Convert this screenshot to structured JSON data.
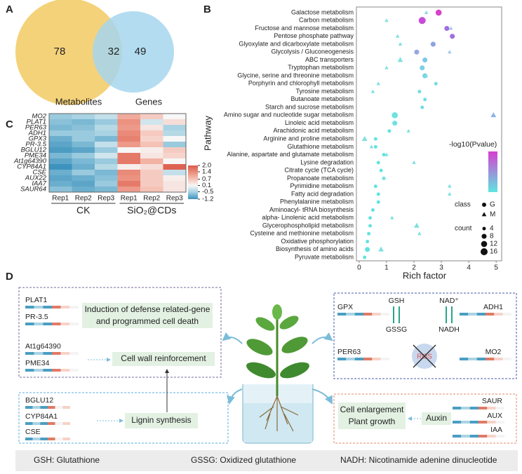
{
  "chart_data": [
    {
      "type": "venn",
      "panel": "A",
      "sets": [
        {
          "name": "Metabolites",
          "color": "#f4d27a"
        },
        {
          "name": "Genes",
          "color": "#a6d6ee"
        }
      ],
      "values": [
        78,
        32,
        49
      ]
    },
    {
      "type": "scatter",
      "panel": "B",
      "x_label": "Rich factor",
      "y_label": "Pathway",
      "categories": [
        "Galactose metabolism",
        "Carbon metabolism",
        "Fructose and mannose metabolism",
        "Pentose phosphate pathway",
        "Glyoxylate and dicarboxylate metabolism",
        "Glycolysis / Gluconeogenesis",
        "ABC transporters",
        "Tryptophan metabolism",
        "Glycine, serine and threonine metabolism",
        "Porphyrin and chlorophyll metabolism",
        "Tyrosine metabolism",
        "Butanoate metabolism",
        "Starch and sucrose metabolism",
        "Amino sugar and nucleotide sugar metabolism",
        "Linoleic acid metabolism",
        "Arachidonic acid metabolism",
        "Arginine and proline metabolism",
        "Glutathione metabolism",
        "Alanine, aspartate and glutamate metabolism",
        "Lysine degradation",
        "Citrate cycle (TCA cycle)",
        "Propanoate metabolism",
        "Pyrimidine metabolism",
        "Fatty acid degradation",
        "Phenylalanine metabolism",
        "Aminoacyl- tRNA biosynthesis",
        "alpha- Linolenic acid metabolism",
        "Glycerophospholipid metabolism",
        "Cysteine and methionine metabolism",
        "Oxidative phosphorylation",
        "Biosynthesis of amino acids",
        "Pyruvate metabolism"
      ],
      "xlim": [
        -0.1,
        5.2
      ],
      "xticks": [
        0,
        1,
        2,
        3,
        4,
        5
      ],
      "series": [
        {
          "name": "G",
          "marker": "circle",
          "values": [
            2.9,
            2.3,
            3.2,
            3.4,
            2.7,
            2.1,
            2.4,
            2.3,
            2.4,
            2.8,
            2.2,
            2.4,
            2.3,
            1.3,
            1.3,
            1.1,
            0.6,
            0.6,
            0.9,
            0.7,
            0.8,
            0.9,
            0.6,
            0.7,
            0.7,
            0.5,
            0.4,
            0.4,
            0.35,
            0.3,
            0.3,
            0.2
          ],
          "sizes": [
            12,
            16,
            8,
            8,
            8,
            8,
            8,
            8,
            8,
            4,
            4,
            4,
            4,
            12,
            8,
            4,
            4,
            4,
            4,
            4,
            4,
            4,
            4,
            4,
            4,
            4,
            4,
            4,
            4,
            4,
            8,
            4
          ],
          "colors": [
            "#d642c9",
            "#c94bd9",
            "#a06ee0",
            "#a06ee0",
            "#8fa0e4",
            "#95a6e6",
            "#80c8e6",
            "#7ad0e4",
            "#7ad0e4",
            "#7ad8e6",
            "#72dce4",
            "#72dce4",
            "#72dce4",
            "#6ee2e2",
            "#6ee2e2",
            "#62e3e0",
            "#62e3e0",
            "#62e3e0",
            "#62e3e0",
            "#62e3e0",
            "#62e3e0",
            "#62e3e0",
            "#62e3e0",
            "#62e3e0",
            "#62e3e0",
            "#62e3e0",
            "#62e3e0",
            "#62e3e0",
            "#62e3e0",
            "#62e3e0",
            "#62e3e0",
            "#62e3e0"
          ]
        },
        {
          "name": "M",
          "marker": "triangle",
          "values": [
            2.45,
            1.0,
            3.35,
            1.4,
            1.5,
            3.3,
            1.5,
            1.0,
            2.45,
            0.7,
            0.5,
            null,
            null,
            4.9,
            null,
            1.8,
            0.2,
            0.45,
            1.0,
            2.0,
            null,
            0.9,
            3.3,
            3.3,
            null,
            null,
            1.2,
            2.1,
            2.2,
            null,
            0.8,
            null
          ],
          "sizes": [
            4,
            4,
            4,
            4,
            4,
            4,
            8,
            4,
            4,
            4,
            4,
            null,
            null,
            8,
            null,
            4,
            8,
            4,
            4,
            4,
            null,
            4,
            4,
            4,
            null,
            null,
            4,
            8,
            4,
            null,
            8,
            null
          ],
          "colors": [
            "#8fd6e0",
            "#7fe0e0",
            "#a0c8e8",
            "#7fe0e0",
            "#7fe0e0",
            "#a0c8e8",
            "#7fe0e0",
            "#7fe0e0",
            "#7fe0e0",
            "#7fe0e0",
            "#7fe0e0",
            null,
            null,
            "#8ab2e8",
            null,
            "#7fe0e0",
            "#7fe0e0",
            "#7fe0e0",
            "#7fe0e0",
            "#7fe0e0",
            null,
            "#7fe0e0",
            "#7fe0e0",
            "#7fe0e0",
            null,
            null,
            "#7fe0e0",
            "#7fe0e0",
            "#7fe0e0",
            null,
            "#7fe0e0",
            null
          ]
        }
      ],
      "colorbar": {
        "title": "-log10(Pvalue)",
        "colors": [
          "#5ee6e0",
          "#d63fd0"
        ]
      },
      "class_title": "class",
      "count_title": "count",
      "count_legend": [
        4,
        8,
        12,
        16
      ]
    },
    {
      "type": "heatmap",
      "panel": "C",
      "rows": [
        "MO2",
        "PLAT1",
        "PER63",
        "ADH1",
        "GPX3",
        "PR-3.5",
        "BGLU12",
        "PME34",
        "At1g64390",
        "CYP84A1",
        "CSE",
        "AUX22",
        "IAA7",
        "SAUR64"
      ],
      "columns": [
        "Rep1",
        "Rep2",
        "Rep3",
        "Rep1",
        "Rep2",
        "Rep3"
      ],
      "groups": [
        "CK",
        "SiO₂@CDs"
      ],
      "values": [
        [
          -0.6,
          -0.5,
          -0.3,
          1.0,
          0.6,
          0.1
        ],
        [
          -0.7,
          -0.8,
          -0.6,
          1.3,
          -0.2,
          0.4
        ],
        [
          -0.8,
          -0.7,
          -0.4,
          1.2,
          0.3,
          -0.5
        ],
        [
          -0.6,
          -0.6,
          -0.5,
          1.4,
          0.6,
          -0.4
        ],
        [
          -0.9,
          -0.6,
          -0.8,
          1.5,
          0.5,
          0.1
        ],
        [
          -1.0,
          -0.8,
          -0.3,
          1.2,
          0.7,
          -0.6
        ],
        [
          -1.1,
          -1.0,
          -0.6,
          0.1,
          0.2,
          0.6
        ],
        [
          -0.8,
          -0.6,
          -0.2,
          1.6,
          0.3,
          0.5
        ],
        [
          -1.0,
          -0.8,
          -0.6,
          1.6,
          0.9,
          0.1
        ],
        [
          -1.2,
          -0.9,
          -0.4,
          0.2,
          0.4,
          1.9
        ],
        [
          -0.9,
          -0.6,
          -0.8,
          1.4,
          0.6,
          -0.3
        ],
        [
          -1.0,
          -0.9,
          -0.7,
          1.3,
          0.6,
          0.2
        ],
        [
          -0.9,
          -1.0,
          -0.6,
          1.6,
          0.6,
          0.3
        ],
        [
          -0.7,
          -0.9,
          -0.8,
          1.2,
          0.7,
          0.3
        ]
      ],
      "clim": [
        -1.2,
        2.0
      ],
      "cticks": [
        {
          "value": 2.0,
          "label": "2.0"
        },
        1.4,
        0.7,
        0.1,
        -0.5,
        -1.2
      ],
      "colorscale": [
        "#3d93bd",
        "#a9d3e3",
        "#f7f7f7",
        "#f5c2b6",
        "#ea8a78",
        "#dc5a4a"
      ]
    }
  ],
  "diagram": {
    "panel": "D",
    "defense": {
      "genes": [
        "PLAT1",
        "PR-3.5"
      ],
      "label": [
        "Induction of defense related-gene",
        "and programmed cell death"
      ]
    },
    "cellwall": {
      "genes": [
        "At1g64390",
        "PME34"
      ],
      "label": "Cell wall reinforcement"
    },
    "lignin": {
      "genes": [
        "BGLU12",
        "CYP84A1",
        "CSE"
      ],
      "label": "Lignin synthesis"
    },
    "redox": {
      "genes": [
        "GPX",
        "ADH1",
        "PER63",
        "MO2"
      ],
      "gsh": "GSH",
      "gssg": "GSSG",
      "nad": "NAD⁺",
      "nadh": "NADH",
      "ros": "ROS"
    },
    "growth": {
      "label": [
        "Cell enlargement",
        "Plant growth"
      ],
      "auxin": "Auxin",
      "genes": [
        "SAUR",
        "AUX",
        "IAA"
      ]
    },
    "footer": [
      "GSH: Glutathione",
      "GSSG:  Oxidized glutathione",
      "NADH:  Nicotinamide adenine dinucleotide"
    ]
  }
}
